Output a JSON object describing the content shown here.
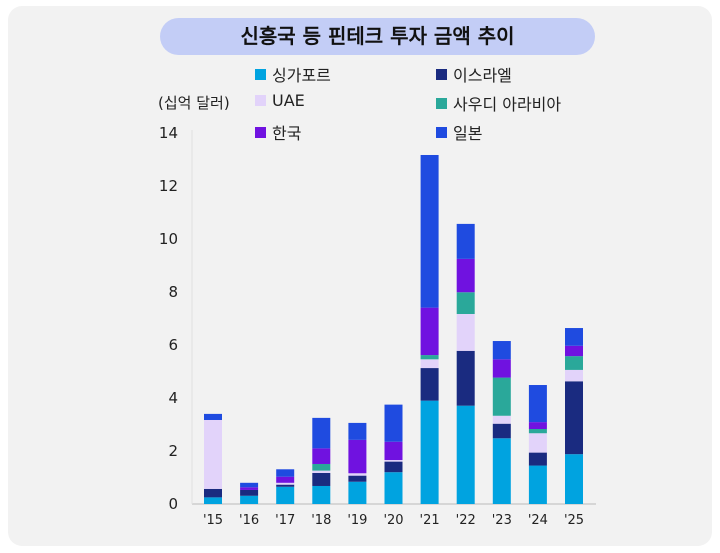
{
  "chart_data": {
    "type": "bar",
    "stacked": true,
    "title": "신흥국 등 핀테크 투자 금액 추이",
    "ylabel": "(십억 달러)",
    "xlabel": "",
    "ylim": [
      0,
      14
    ],
    "yticks": [
      "0",
      "2",
      "4",
      "6",
      "8",
      "10",
      "12",
      "14"
    ],
    "grid": false,
    "legend_position": "top",
    "categories": [
      "'15",
      "'16",
      "'17",
      "'18",
      "'19",
      "'20",
      "'21",
      "'22",
      "'23",
      "'24",
      "'25"
    ],
    "series": [
      {
        "name": "싱가포르",
        "color": "#00a3e0",
        "values": [
          0.25,
          0.31,
          0.65,
          0.68,
          0.84,
          1.2,
          3.9,
          3.71,
          2.48,
          1.45,
          1.88
        ]
      },
      {
        "name": "이스라엘",
        "color": "#1a2b80",
        "values": [
          0.32,
          0.22,
          0.08,
          0.49,
          0.23,
          0.4,
          1.23,
          2.07,
          0.55,
          0.49,
          2.75
        ]
      },
      {
        "name": "UAE",
        "color": "#e2d3fa",
        "values": [
          2.6,
          0.0,
          0.07,
          0.09,
          0.09,
          0.06,
          0.33,
          1.39,
          0.3,
          0.73,
          0.43
        ]
      },
      {
        "name": "사우디 아라비아",
        "color": "#2aa89a",
        "values": [
          0.0,
          0.0,
          0.0,
          0.25,
          0.0,
          0.0,
          0.16,
          0.82,
          1.44,
          0.16,
          0.52
        ]
      },
      {
        "name": "한국",
        "color": "#7012e0",
        "values": [
          0.0,
          0.1,
          0.23,
          0.59,
          1.26,
          0.69,
          1.79,
          1.26,
          0.69,
          0.26,
          0.39
        ]
      },
      {
        "name": "일본",
        "color": "#1f4be0",
        "values": [
          0.23,
          0.17,
          0.28,
          1.15,
          0.64,
          1.4,
          5.76,
          1.32,
          0.69,
          1.4,
          0.67
        ]
      }
    ]
  }
}
